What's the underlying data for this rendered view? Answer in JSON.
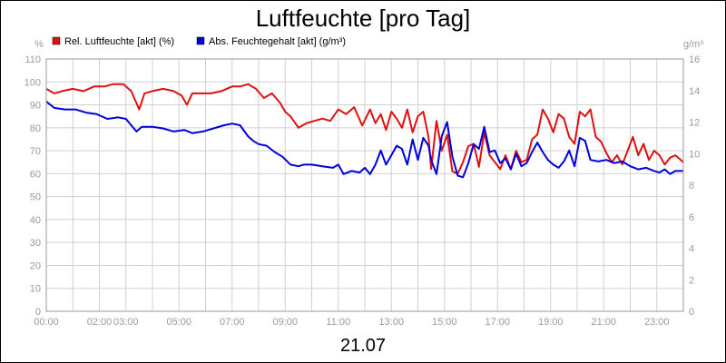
{
  "chart_data": {
    "type": "line",
    "title": "Luftfeuchte [pro Tag]",
    "date_label": "21.07",
    "left_unit": "%",
    "right_unit": "g/m³",
    "left_ylim": [
      0,
      110
    ],
    "left_ticks": [
      0,
      10,
      20,
      30,
      40,
      50,
      60,
      70,
      80,
      90,
      100,
      110
    ],
    "right_ylim": [
      0,
      16
    ],
    "right_ticks": [
      0,
      2,
      4,
      6,
      8,
      10,
      12,
      14,
      16
    ],
    "xlim": [
      0,
      24
    ],
    "x_ticks": [
      0,
      1,
      2,
      3,
      4,
      5,
      6,
      7,
      8,
      9,
      10,
      11,
      12,
      13,
      14,
      15,
      16,
      17,
      18,
      19,
      20,
      21,
      22,
      23,
      24
    ],
    "x_tick_labels": [
      {
        "x": 0,
        "label": "00:00"
      },
      {
        "x": 2,
        "label": "02:00"
      },
      {
        "x": 3,
        "label": "03:00"
      },
      {
        "x": 5,
        "label": "05:00"
      },
      {
        "x": 7,
        "label": "07:00"
      },
      {
        "x": 9,
        "label": "09:00"
      },
      {
        "x": 11,
        "label": "11:00"
      },
      {
        "x": 13,
        "label": "13:00"
      },
      {
        "x": 15,
        "label": "15:00"
      },
      {
        "x": 17,
        "label": "17:00"
      },
      {
        "x": 19,
        "label": "19:00"
      },
      {
        "x": 21,
        "label": "21:00"
      },
      {
        "x": 23,
        "label": "23:00"
      }
    ],
    "grid": true,
    "legend_position": "top-left",
    "series": [
      {
        "name": "Rel. Luftfeuchte [akt] (%)",
        "color": "#e01010",
        "axis": "left",
        "x": [
          0,
          0.3,
          0.6,
          1.0,
          1.4,
          1.8,
          2.2,
          2.5,
          2.9,
          3.2,
          3.35,
          3.5,
          3.7,
          4.0,
          4.4,
          4.8,
          5.1,
          5.3,
          5.5,
          5.8,
          6.2,
          6.6,
          7.0,
          7.3,
          7.6,
          7.9,
          8.2,
          8.5,
          8.8,
          9.0,
          9.2,
          9.5,
          9.8,
          10.1,
          10.4,
          10.7,
          11.0,
          11.3,
          11.6,
          11.9,
          12.2,
          12.4,
          12.6,
          12.8,
          13.0,
          13.2,
          13.4,
          13.6,
          13.8,
          14.0,
          14.2,
          14.4,
          14.5,
          14.7,
          14.9,
          15.1,
          15.3,
          15.5,
          15.7,
          15.9,
          16.1,
          16.3,
          16.5,
          16.7,
          16.9,
          17.1,
          17.3,
          17.5,
          17.7,
          17.9,
          18.1,
          18.3,
          18.5,
          18.7,
          18.9,
          19.1,
          19.3,
          19.5,
          19.7,
          19.9,
          20.1,
          20.3,
          20.5,
          20.7,
          20.9,
          21.1,
          21.3,
          21.5,
          21.7,
          21.9,
          22.1,
          22.3,
          22.5,
          22.7,
          22.9,
          23.1,
          23.3,
          23.5,
          23.7,
          24.0
        ],
        "values": [
          97,
          95,
          96,
          97,
          96,
          98,
          98,
          99,
          99,
          96,
          92,
          88,
          95,
          96,
          97,
          96,
          94,
          90,
          95,
          95,
          95,
          96,
          98,
          98,
          99,
          97,
          93,
          95,
          91,
          87,
          85,
          80,
          82,
          83,
          84,
          83,
          88,
          86,
          89,
          81,
          88,
          82,
          86,
          79,
          87,
          84,
          80,
          88,
          78,
          85,
          87,
          76,
          62,
          83,
          70,
          77,
          61,
          60,
          65,
          72,
          73,
          63,
          78,
          68,
          65,
          62,
          68,
          62,
          70,
          65,
          66,
          75,
          77,
          88,
          84,
          78,
          86,
          84,
          76,
          73,
          87,
          85,
          88,
          76,
          74,
          69,
          65,
          68,
          64,
          70,
          76,
          68,
          73,
          66,
          70,
          68,
          64,
          67,
          68,
          65
        ]
      },
      {
        "name": "Abs. Feuchtegehalt [akt] (g/m³)",
        "color": "#0000dd",
        "axis": "right",
        "x": [
          0,
          0.3,
          0.7,
          1.1,
          1.5,
          1.9,
          2.3,
          2.7,
          3.0,
          3.3,
          3.4,
          3.6,
          4.0,
          4.4,
          4.8,
          5.2,
          5.5,
          5.9,
          6.3,
          6.7,
          7.0,
          7.3,
          7.6,
          7.8,
          8.0,
          8.3,
          8.6,
          8.9,
          9.2,
          9.5,
          9.7,
          10.0,
          10.4,
          10.8,
          11.0,
          11.2,
          11.5,
          11.8,
          12.0,
          12.2,
          12.4,
          12.6,
          12.8,
          13.0,
          13.2,
          13.4,
          13.6,
          13.8,
          14.0,
          14.2,
          14.4,
          14.5,
          14.7,
          14.9,
          15.1,
          15.3,
          15.5,
          15.7,
          15.9,
          16.1,
          16.3,
          16.5,
          16.7,
          16.9,
          17.1,
          17.3,
          17.5,
          17.7,
          17.9,
          18.1,
          18.3,
          18.5,
          18.7,
          18.9,
          19.1,
          19.3,
          19.5,
          19.7,
          19.9,
          20.1,
          20.3,
          20.5,
          20.8,
          21.1,
          21.4,
          21.7,
          22.0,
          22.3,
          22.6,
          22.9,
          23.1,
          23.3,
          23.5,
          23.7,
          24.0
        ],
        "values": [
          13.3,
          12.9,
          12.8,
          12.8,
          12.6,
          12.5,
          12.2,
          12.3,
          12.2,
          11.6,
          11.4,
          11.7,
          11.7,
          11.6,
          11.4,
          11.5,
          11.3,
          11.4,
          11.6,
          11.8,
          11.9,
          11.8,
          11.1,
          10.8,
          10.6,
          10.5,
          10.1,
          9.8,
          9.3,
          9.2,
          9.3,
          9.3,
          9.2,
          9.1,
          9.3,
          8.7,
          8.9,
          8.8,
          9.1,
          8.7,
          9.3,
          10.2,
          9.3,
          9.9,
          10.5,
          10.3,
          9.3,
          10.9,
          9.6,
          11.0,
          10.5,
          9.6,
          8.7,
          11.1,
          12.0,
          9.8,
          8.6,
          8.5,
          9.4,
          10.6,
          10.3,
          11.7,
          10.1,
          10.2,
          9.4,
          9.7,
          9.0,
          10.0,
          9.2,
          9.4,
          10.1,
          10.7,
          10.1,
          9.6,
          9.3,
          9.1,
          9.5,
          10.2,
          9.2,
          11.0,
          10.8,
          9.6,
          9.5,
          9.6,
          9.4,
          9.5,
          9.2,
          9.0,
          9.1,
          8.9,
          8.8,
          9.0,
          8.7,
          8.9,
          8.9
        ]
      }
    ]
  }
}
